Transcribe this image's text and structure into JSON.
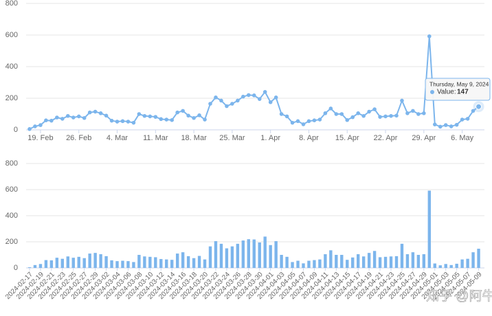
{
  "chart_data": [
    {
      "type": "line",
      "color": "#7cb5ec",
      "x": [
        "2024-02-17",
        "2024-02-18",
        "2024-02-19",
        "2024-02-20",
        "2024-02-21",
        "2024-02-22",
        "2024-02-23",
        "2024-02-24",
        "2024-02-25",
        "2024-02-26",
        "2024-02-27",
        "2024-02-28",
        "2024-02-29",
        "2024-03-01",
        "2024-03-02",
        "2024-03-03",
        "2024-03-04",
        "2024-03-05",
        "2024-03-06",
        "2024-03-07",
        "2024-03-08",
        "2024-03-09",
        "2024-03-10",
        "2024-03-11",
        "2024-03-12",
        "2024-03-13",
        "2024-03-14",
        "2024-03-15",
        "2024-03-16",
        "2024-03-17",
        "2024-03-18",
        "2024-03-19",
        "2024-03-20",
        "2024-03-21",
        "2024-03-22",
        "2024-03-23",
        "2024-03-24",
        "2024-03-25",
        "2024-03-26",
        "2024-03-27",
        "2024-03-28",
        "2024-03-29",
        "2024-03-30",
        "2024-03-31",
        "2024-04-01",
        "2024-04-02",
        "2024-04-03",
        "2024-04-04",
        "2024-04-05",
        "2024-04-06",
        "2024-04-07",
        "2024-04-08",
        "2024-04-09",
        "2024-04-10",
        "2024-04-11",
        "2024-04-12",
        "2024-04-13",
        "2024-04-14",
        "2024-04-15",
        "2024-04-16",
        "2024-04-17",
        "2024-04-18",
        "2024-04-19",
        "2024-04-20",
        "2024-04-21",
        "2024-04-22",
        "2024-04-23",
        "2024-04-24",
        "2024-04-25",
        "2024-04-26",
        "2024-04-27",
        "2024-04-28",
        "2024-04-29",
        "2024-04-30",
        "2024-05-01",
        "2024-05-02",
        "2024-05-03",
        "2024-05-04",
        "2024-05-05",
        "2024-05-06",
        "2024-05-07",
        "2024-05-08",
        "2024-05-09"
      ],
      "values": [
        5,
        22,
        30,
        60,
        58,
        78,
        70,
        88,
        78,
        85,
        75,
        110,
        115,
        105,
        90,
        58,
        52,
        55,
        52,
        45,
        100,
        88,
        85,
        82,
        68,
        65,
        62,
        110,
        120,
        90,
        75,
        92,
        65,
        165,
        205,
        185,
        150,
        165,
        185,
        210,
        220,
        218,
        195,
        240,
        175,
        205,
        100,
        85,
        45,
        55,
        35,
        55,
        60,
        65,
        105,
        135,
        100,
        100,
        62,
        80,
        105,
        88,
        115,
        130,
        82,
        85,
        88,
        90,
        185,
        105,
        120,
        100,
        105,
        592,
        34,
        20,
        30,
        22,
        32,
        65,
        70,
        120,
        147
      ],
      "xticks": [
        {
          "value": "2024-02-19",
          "label": "19. Feb"
        },
        {
          "value": "2024-02-26",
          "label": "26. Feb"
        },
        {
          "value": "2024-03-04",
          "label": "4. Mar"
        },
        {
          "value": "2024-03-11",
          "label": "11. Mar"
        },
        {
          "value": "2024-03-18",
          "label": "18. Mar"
        },
        {
          "value": "2024-03-25",
          "label": "25. Mar"
        },
        {
          "value": "2024-04-01",
          "label": "1. Apr"
        },
        {
          "value": "2024-04-08",
          "label": "8. Apr"
        },
        {
          "value": "2024-04-15",
          "label": "15. Apr"
        },
        {
          "value": "2024-04-22",
          "label": "22. Apr"
        },
        {
          "value": "2024-04-29",
          "label": "29. Apr"
        },
        {
          "value": "2024-05-06",
          "label": "6. May"
        }
      ],
      "ylim": [
        0,
        800
      ],
      "yticks": [
        0,
        200,
        400,
        600,
        800
      ],
      "grid": true,
      "tooltip": {
        "title": "Thursday, May 9, 2024",
        "label": "Value:"
      }
    },
    {
      "type": "bar",
      "color": "#7cb5ec",
      "categories": [
        "2024-02-17",
        null,
        "2024-02-19",
        null,
        "2024-02-21",
        null,
        "2024-02-23",
        null,
        "2024-02-25",
        null,
        "2024-02-27",
        null,
        "2024-02-29",
        null,
        "2024-03-02",
        null,
        "2024-03-04",
        null,
        "2024-03-06",
        null,
        "2024-03-08",
        null,
        "2024-03-10",
        null,
        "2024-03-12",
        null,
        "2024-03-14",
        null,
        "2024-03-16",
        null,
        "2024-03-18",
        null,
        "2024-03-20",
        null,
        "2024-03-22",
        null,
        "2024-03-24",
        null,
        "2024-03-26",
        null,
        "2024-03-28",
        null,
        "2024-03-30",
        null,
        "2024-04-01",
        null,
        "2024-04-03",
        null,
        "2024-04-05",
        null,
        "2024-04-07",
        null,
        "2024-04-09",
        null,
        "2024-04-11",
        null,
        "2024-04-13",
        null,
        "2024-04-15",
        null,
        "2024-04-17",
        null,
        "2024-04-19",
        null,
        "2024-04-21",
        null,
        "2024-04-23",
        null,
        "2024-04-25",
        null,
        "2024-04-27",
        null,
        "2024-04-29",
        null,
        "2024-05-01",
        null,
        "2024-05-03",
        null,
        "2024-05-05",
        null,
        "2024-05-07",
        null,
        "2024-05-09"
      ],
      "values": [
        5,
        22,
        30,
        60,
        58,
        78,
        70,
        88,
        78,
        85,
        75,
        110,
        115,
        105,
        90,
        58,
        52,
        55,
        52,
        45,
        100,
        88,
        85,
        82,
        68,
        65,
        62,
        110,
        120,
        90,
        75,
        92,
        65,
        165,
        205,
        185,
        150,
        165,
        185,
        210,
        220,
        218,
        195,
        240,
        175,
        205,
        100,
        85,
        45,
        55,
        35,
        55,
        60,
        65,
        105,
        135,
        100,
        100,
        62,
        80,
        105,
        88,
        115,
        130,
        82,
        85,
        88,
        90,
        185,
        105,
        120,
        100,
        105,
        592,
        34,
        20,
        30,
        22,
        32,
        65,
        70,
        120,
        147
      ],
      "ylim": [
        0,
        800
      ],
      "yticks": [
        0,
        200,
        400,
        600,
        800
      ],
      "grid": true
    }
  ],
  "watermark": "知乎 @阿牛买房"
}
